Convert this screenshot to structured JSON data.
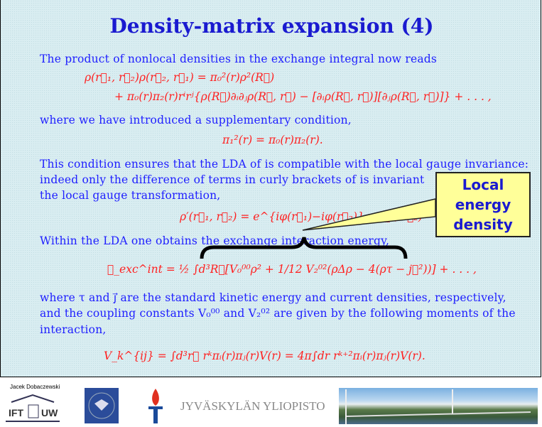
{
  "slide": {
    "title": "Density-matrix expansion (4)",
    "lines": [
      "The product of nonlocal densities in the exchange integral now reads",
      "where we have introduced a supplementary condition,",
      "This condition ensures that the LDA of is compatible with the local gauge invariance:",
      "indeed only the difference of terms in curly brackets of is invariant",
      "the local gauge transformation,",
      "Within the LDA one obtains the exchange interaction energy,",
      "where τ and j⃗ are the standard kinetic energy and current densities, respectively,",
      "and the coupling constants V₀⁰⁰ and V₂⁰² are given by the following moments of the",
      "interaction,"
    ],
    "equations": {
      "eq1a": "ρ(r⃗₁, r⃗₂)ρ(r⃗₂, r⃗₁) = π₀²(r)ρ²(R⃗)",
      "eq1b": "+ π₀(r)π₂(r)rⁱrʲ{ρ(R⃗)∂ᵢ∂ⱼρ(R⃗, r⃗) − [∂ᵢρ(R⃗, r⃗)][∂ⱼρ(R⃗, r⃗)]} + . . . ,",
      "eq2": "π₁²(r) = π₀(r)π₂(r).",
      "eq3": "ρ′(r⃗₁, r⃗₂) = e^{iφ(r⃗₁)−iφ(r⃗₂)} ρ(r⃗₁, r⃗₂)",
      "eq4": "ℰ_exc^int = ½ ∫d³R⃗[V₀⁰⁰ρ² + 1/12 V₂⁰²(ρΔρ − 4(ρτ − j⃗²))] + . . . ,",
      "eq5": "V_k^{ij} = ∫d³r⃗ rᵏπᵢ(r)πⱼ(r)V(r) = 4π∫dr rᵏ⁺²πᵢ(r)πⱼ(r)V(r)."
    },
    "callout": [
      "Local",
      "energy",
      "density"
    ]
  },
  "footer": {
    "author": "Jacek Dobaczewski",
    "ift_logo": "IFT UW",
    "university": "JYVÄSKYLÄN YLIOPISTO"
  },
  "colors": {
    "title": "#1a1ad0",
    "text": "#2020ff",
    "math": "#ff2020",
    "callout_bg": "#ffff99"
  }
}
